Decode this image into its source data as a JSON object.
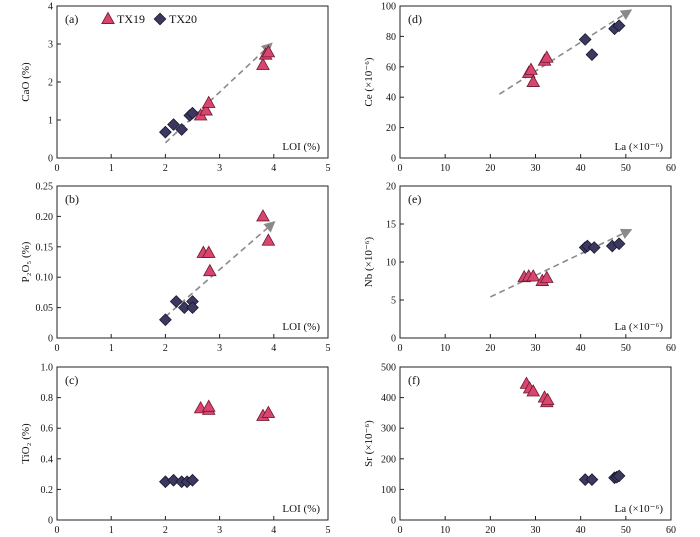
{
  "legend": [
    {
      "name": "TX19",
      "marker": "triangle",
      "color": "#d8456e"
    },
    {
      "name": "TX20",
      "marker": "diamond",
      "color": "#3b3960"
    }
  ],
  "chart_data": [
    {
      "id": "a",
      "type": "scatter",
      "label": "(a)",
      "ylabel": "CaO (%)",
      "xlabel": "LOI (%)",
      "xlim": [
        0,
        5
      ],
      "ylim": [
        0,
        4
      ],
      "xticks": [
        "0",
        "1",
        "2",
        "3",
        "4",
        "5"
      ],
      "yticks": [
        "0",
        "1",
        "2",
        "3",
        "4"
      ],
      "series": [
        {
          "name": "TX19",
          "points": [
            [
              2.65,
              1.12
            ],
            [
              2.75,
              1.25
            ],
            [
              2.8,
              1.45
            ],
            [
              3.8,
              2.45
            ],
            [
              3.85,
              2.72
            ],
            [
              3.9,
              2.78
            ]
          ]
        },
        {
          "name": "TX20",
          "points": [
            [
              2.0,
              0.68
            ],
            [
              2.15,
              0.88
            ],
            [
              2.3,
              0.75
            ],
            [
              2.45,
              1.12
            ],
            [
              2.5,
              1.18
            ]
          ]
        }
      ],
      "trend": [
        [
          2.0,
          0.4
        ],
        [
          3.95,
          3.0
        ]
      ]
    },
    {
      "id": "d",
      "type": "scatter",
      "label": "(d)",
      "ylabel": "Ce (×10⁻⁶)",
      "xlabel": "La (×10⁻⁶)",
      "xlim": [
        0,
        60
      ],
      "ylim": [
        0,
        100
      ],
      "xticks": [
        "0",
        "10",
        "20",
        "30",
        "40",
        "50",
        "60"
      ],
      "yticks": [
        "0",
        "20",
        "40",
        "60",
        "80",
        "100"
      ],
      "series": [
        {
          "name": "TX19",
          "points": [
            [
              28.5,
              56
            ],
            [
              29.0,
              58
            ],
            [
              29.5,
              50
            ],
            [
              32.0,
              64
            ],
            [
              32.5,
              66
            ]
          ]
        },
        {
          "name": "TX20",
          "points": [
            [
              41.0,
              78
            ],
            [
              42.5,
              68
            ],
            [
              47.5,
              85
            ],
            [
              48.5,
              87
            ]
          ]
        }
      ],
      "trend": [
        [
          22,
          42
        ],
        [
          51,
          97
        ]
      ]
    },
    {
      "id": "b",
      "type": "scatter",
      "label": "(b)",
      "ylabel": "P₂O₅ (%)",
      "xlabel": "LOI (%)",
      "xlim": [
        0,
        5
      ],
      "ylim": [
        0,
        0.25
      ],
      "xticks": [
        "0",
        "1",
        "2",
        "3",
        "4",
        "5"
      ],
      "yticks": [
        "0",
        "0.05",
        "0.10",
        "0.15",
        "0.20",
        "0.25"
      ],
      "series": [
        {
          "name": "TX19",
          "points": [
            [
              2.7,
              0.14
            ],
            [
              2.8,
              0.14
            ],
            [
              2.82,
              0.11
            ],
            [
              3.8,
              0.2
            ],
            [
              3.9,
              0.16
            ]
          ]
        },
        {
          "name": "TX20",
          "points": [
            [
              2.0,
              0.03
            ],
            [
              2.2,
              0.06
            ],
            [
              2.35,
              0.05
            ],
            [
              2.5,
              0.06
            ],
            [
              2.5,
              0.05
            ]
          ]
        }
      ],
      "trend": [
        [
          2.0,
          0.035
        ],
        [
          4.0,
          0.19
        ]
      ]
    },
    {
      "id": "e",
      "type": "scatter",
      "label": "(e)",
      "ylabel": "Nb (×10⁻⁶)",
      "xlabel": "La (×10⁻⁶)",
      "xlim": [
        0,
        60
      ],
      "ylim": [
        0,
        20
      ],
      "xticks": [
        "0",
        "10",
        "20",
        "30",
        "40",
        "50",
        "60"
      ],
      "yticks": [
        "0",
        "5",
        "10",
        "15",
        "20"
      ],
      "series": [
        {
          "name": "TX19",
          "points": [
            [
              27.5,
              8.0
            ],
            [
              28.5,
              8.1
            ],
            [
              29.5,
              8.1
            ],
            [
              31.5,
              7.5
            ],
            [
              32.5,
              7.9
            ]
          ]
        },
        {
          "name": "TX20",
          "points": [
            [
              41.0,
              11.9
            ],
            [
              41.5,
              12.1
            ],
            [
              43.0,
              11.9
            ],
            [
              47.0,
              12.1
            ],
            [
              48.5,
              12.4
            ]
          ]
        }
      ],
      "trend": [
        [
          20,
          5.4
        ],
        [
          51,
          14.2
        ]
      ]
    },
    {
      "id": "c",
      "type": "scatter",
      "label": "(c)",
      "ylabel": "TiO₂ (%)",
      "xlabel": "LOI (%)",
      "xlim": [
        0,
        5
      ],
      "ylim": [
        0,
        1.0
      ],
      "xticks": [
        "0",
        "1",
        "2",
        "3",
        "4",
        "5"
      ],
      "yticks": [
        "0",
        "0.2",
        "0.4",
        "0.6",
        "0.8",
        "1.0"
      ],
      "series": [
        {
          "name": "TX19",
          "points": [
            [
              2.65,
              0.73
            ],
            [
              2.8,
              0.72
            ],
            [
              2.8,
              0.74
            ],
            [
              3.8,
              0.68
            ],
            [
              3.9,
              0.7
            ]
          ]
        },
        {
          "name": "TX20",
          "points": [
            [
              2.0,
              0.25
            ],
            [
              2.15,
              0.26
            ],
            [
              2.3,
              0.25
            ],
            [
              2.4,
              0.25
            ],
            [
              2.5,
              0.26
            ]
          ]
        }
      ],
      "trend": null
    },
    {
      "id": "f",
      "type": "scatter",
      "label": "(f)",
      "ylabel": "Sr (×10⁻⁶)",
      "xlabel": "La (×10⁻⁶)",
      "xlim": [
        0,
        60
      ],
      "ylim": [
        0,
        500
      ],
      "xticks": [
        "0",
        "10",
        "20",
        "30",
        "40",
        "50",
        "60"
      ],
      "yticks": [
        "0",
        "100",
        "200",
        "300",
        "400",
        "500"
      ],
      "series": [
        {
          "name": "TX19",
          "points": [
            [
              28.0,
              445
            ],
            [
              28.7,
              430
            ],
            [
              29.5,
              420
            ],
            [
              32.0,
              400
            ],
            [
              32.5,
              385
            ],
            [
              32.7,
              392
            ]
          ]
        },
        {
          "name": "TX20",
          "points": [
            [
              41.0,
              132
            ],
            [
              42.5,
              132
            ],
            [
              47.5,
              138
            ],
            [
              48.0,
              140
            ],
            [
              48.5,
              144
            ]
          ]
        }
      ],
      "trend": null
    }
  ]
}
